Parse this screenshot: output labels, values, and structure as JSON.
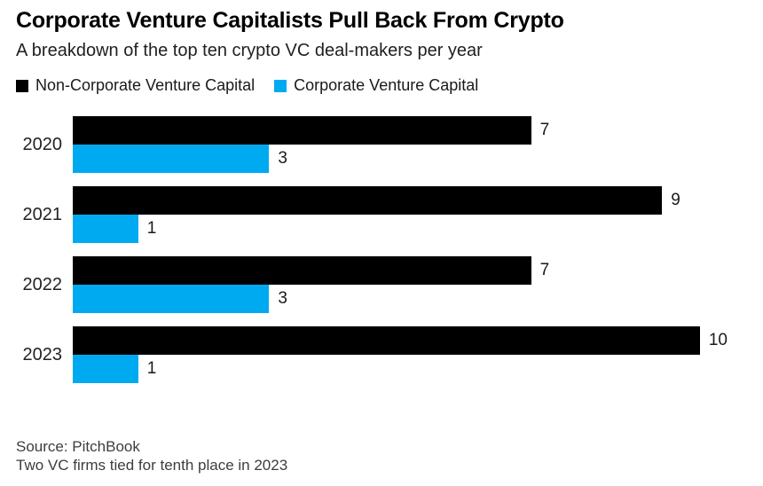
{
  "header": {
    "title": "Corporate Venture Capitalists Pull Back From Crypto",
    "subtitle": "A breakdown of the top ten crypto VC deal-makers per year"
  },
  "chart_data": {
    "type": "bar",
    "orientation": "horizontal",
    "title": "Corporate Venture Capitalists Pull Back From Crypto",
    "subtitle": "A breakdown of the top ten crypto VC deal-makers per year",
    "categories": [
      "2020",
      "2021",
      "2022",
      "2023"
    ],
    "series": [
      {
        "name": "Non-Corporate Venture Capital",
        "color": "#000000",
        "values": [
          7,
          9,
          7,
          10
        ]
      },
      {
        "name": "Corporate Venture Capital",
        "color": "#00aaf0",
        "values": [
          3,
          1,
          3,
          1
        ]
      }
    ],
    "xlim": [
      0,
      10
    ],
    "grid": false,
    "value_labels": true,
    "legend_position": "top"
  },
  "footer": {
    "source": "Source: PitchBook",
    "note": "Two VC firms tied for tenth place in 2023"
  }
}
